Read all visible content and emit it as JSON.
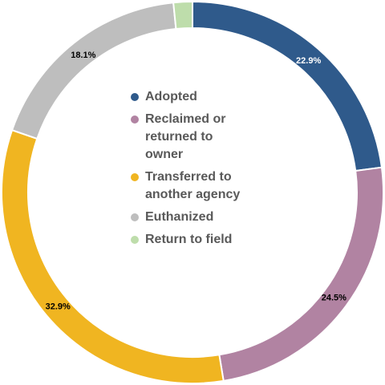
{
  "chart_data": {
    "type": "pie",
    "variant": "donut",
    "categories": [
      "Adopted",
      "Reclaimed or\nreturned to\nowner",
      "Transferred to\nanother agency",
      "Euthanized",
      "Return to field"
    ],
    "values": [
      22.9,
      24.5,
      32.9,
      18.1,
      1.6
    ],
    "value_labels": [
      "22.9%",
      "24.5%",
      "32.9%",
      "18.1%",
      ""
    ],
    "colors": [
      "#2F5A8B",
      "#B183A2",
      "#F0B521",
      "#BEBEBE",
      "#BEDDAB"
    ],
    "label_colors": [
      "#ffffff",
      "#000000",
      "#000000",
      "#000000",
      "#000000"
    ],
    "legend_position": "center",
    "title": ""
  }
}
